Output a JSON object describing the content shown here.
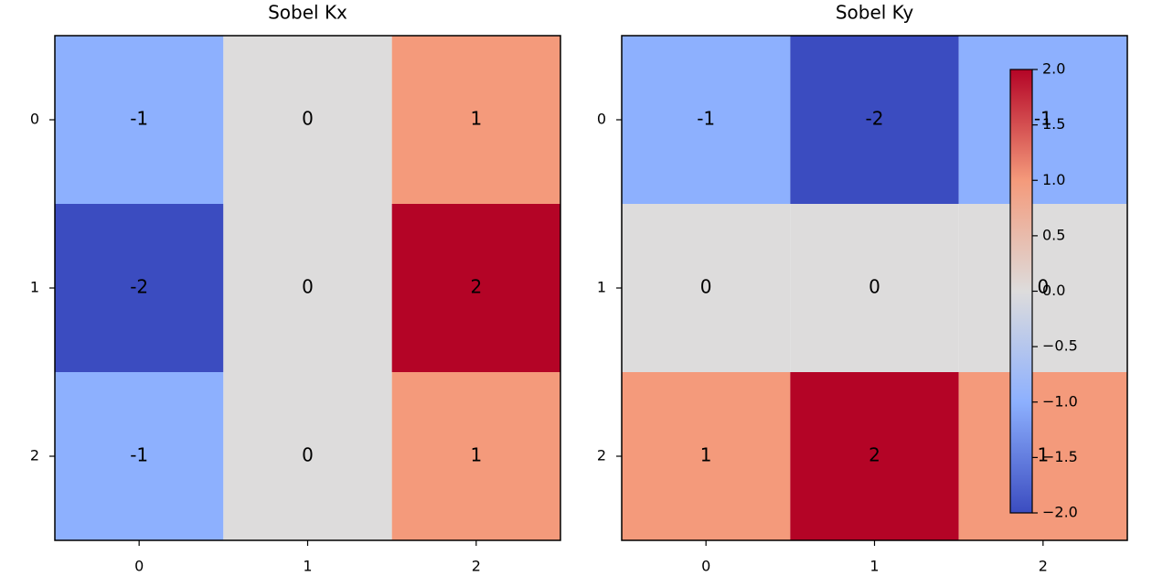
{
  "chart_data": [
    {
      "type": "heatmap",
      "title": "Sobel Kx",
      "colormap": "coolwarm",
      "clim": [
        -2,
        2
      ],
      "values": [
        [
          -1,
          0,
          1
        ],
        [
          -2,
          0,
          2
        ],
        [
          -1,
          0,
          1
        ]
      ],
      "xlim": [
        -0.5,
        2.5
      ],
      "ylim": [
        2.5,
        -0.5
      ],
      "xticks": [
        0,
        1,
        2
      ],
      "yticks": [
        0,
        1,
        2
      ]
    },
    {
      "type": "heatmap",
      "title": "Sobel Ky",
      "colormap": "coolwarm",
      "clim": [
        -2,
        2
      ],
      "values": [
        [
          -1,
          -2,
          -1
        ],
        [
          0,
          0,
          0
        ],
        [
          1,
          2,
          1
        ]
      ],
      "xlim": [
        -0.5,
        2.5
      ],
      "ylim": [
        2.5,
        -0.5
      ],
      "xticks": [
        0,
        1,
        2
      ],
      "yticks": [
        0,
        1,
        2
      ],
      "colorbar": {
        "lim": [
          -2,
          2
        ],
        "ticks": [
          {
            "value": 2,
            "label": "2.0"
          },
          {
            "value": 1.5,
            "label": "1.5"
          },
          {
            "value": 1,
            "label": "1.0"
          },
          {
            "value": 0.5,
            "label": "0.5"
          },
          {
            "value": 0,
            "label": "0.0"
          },
          {
            "value": -0.5,
            "label": "−0.5"
          },
          {
            "value": -1,
            "label": "−1.0"
          },
          {
            "value": -1.5,
            "label": "−1.5"
          },
          {
            "value": -2,
            "label": "−2.0"
          }
        ]
      }
    }
  ]
}
